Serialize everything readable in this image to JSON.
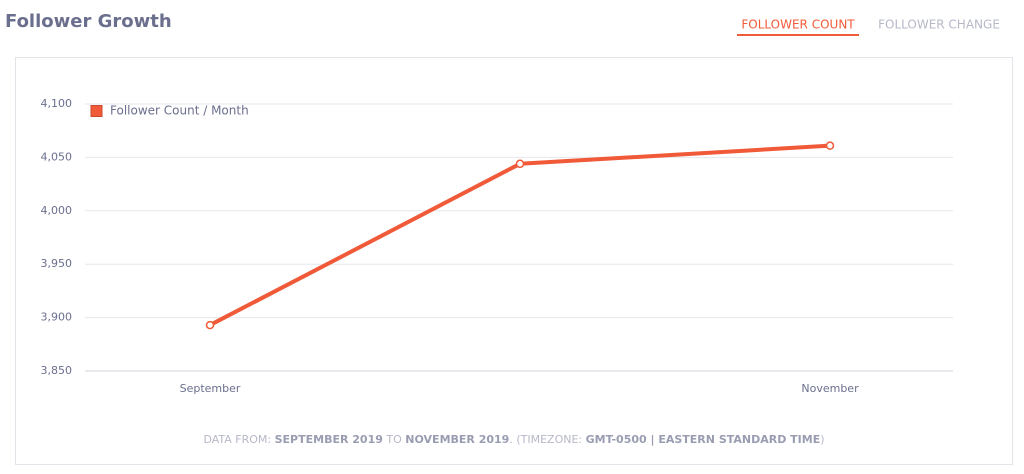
{
  "header": {
    "title": "Follower Growth",
    "tabs": [
      "FOLLOWER COUNT",
      "FOLLOWER CHANGE"
    ]
  },
  "chart_data": {
    "type": "line",
    "categories": [
      "September",
      null,
      "November"
    ],
    "series": [
      {
        "name": "Follower Count / Month",
        "color": "#f05a38",
        "values": [
          3893,
          4044,
          4061
        ]
      }
    ],
    "ylim": [
      3850,
      4100
    ],
    "yticks": [
      {
        "value": 3850,
        "label": "3,850"
      },
      {
        "value": 3900,
        "label": "3,900"
      },
      {
        "value": 3950,
        "label": "3,950"
      },
      {
        "value": 4000,
        "label": "4,000"
      },
      {
        "value": 4050,
        "label": "4,050"
      },
      {
        "value": 4100,
        "label": "4,100"
      }
    ],
    "grid": true,
    "legend": "top-left"
  },
  "footer": {
    "prefix": "DATA FROM:",
    "start": "SEPTEMBER 2019",
    "to": "TO",
    "end": "NOVEMBER 2019",
    "tz_prefix": ". (TIMEZONE:",
    "tz": "GMT-0500 | EASTERN STANDARD TIME",
    "suffix": ")"
  }
}
